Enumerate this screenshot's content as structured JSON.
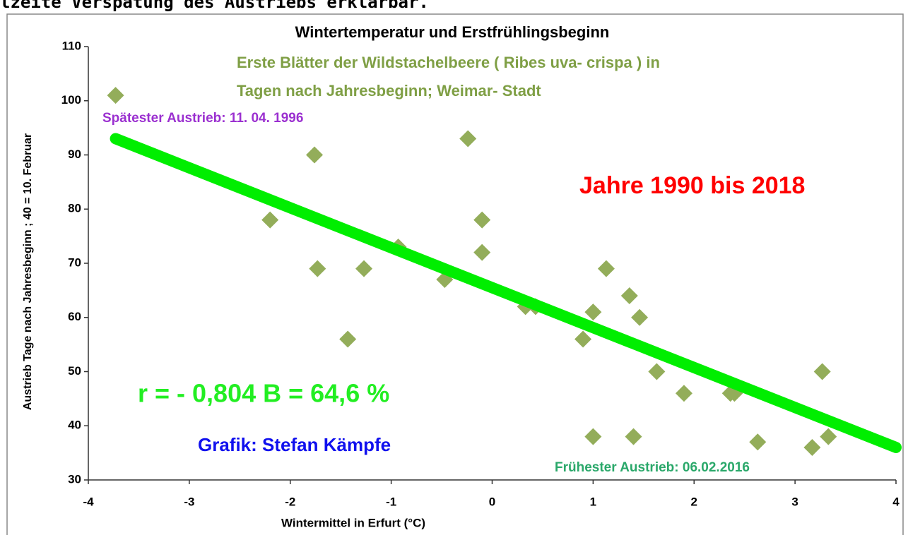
{
  "header_text": "lzeite Verspätung des Austriebs erklärbar.",
  "chart_data": {
    "type": "scatter",
    "title": "Wintertemperatur und Erstfrühlingsbeginn",
    "subtitle": [
      "Erste Blätter der Wildstachelbeere ( Ribes uva- crispa )  in",
      "Tagen nach Jahresbeginn;   Weimar- Stadt"
    ],
    "subtitle_color": "#7f9f45",
    "x_label": "Wintermittel in Erfurt (°C)",
    "y_label": "Austrieb Tage nach Jahresbeginn ; 40 = 10. Februar",
    "xlim": [
      -4,
      4
    ],
    "xticks": [
      -4,
      -3,
      -2,
      -1,
      0,
      1,
      2,
      3,
      4
    ],
    "ylim": [
      30,
      110
    ],
    "yticks": [
      30,
      40,
      50,
      60,
      70,
      80,
      90,
      100,
      110
    ],
    "series": [
      {
        "color": "#93ad5a",
        "x": [
          -3.73,
          -2.2,
          -1.76,
          -1.73,
          -1.27,
          -1.43,
          -0.93,
          -0.47,
          -0.24,
          -0.1,
          -0.1,
          0.33,
          0.43,
          0.9,
          1.0,
          1.0,
          1.13,
          1.36,
          1.4,
          1.46,
          1.63,
          1.9,
          2.36,
          2.4,
          2.63,
          3.17,
          3.27,
          3.33
        ],
        "values": [
          101,
          78,
          90,
          69,
          69,
          56,
          73,
          67,
          93,
          78,
          72,
          62,
          62,
          56,
          61,
          38,
          69,
          64,
          38,
          60,
          50,
          46,
          46,
          46,
          37,
          36,
          50,
          38
        ]
      }
    ],
    "trendline": {
      "color": "#00ee00",
      "x": [
        -3.73,
        4
      ],
      "values": [
        93,
        36
      ]
    },
    "annotations": [
      {
        "text": "Spätester Austrieb: 11. 04. 1996",
        "color": "#9b30d0"
      },
      {
        "text": "Jahre 1990 bis 2018",
        "color": "#ff0000"
      },
      {
        "text": "r = - 0,804  B = 64,6 %",
        "color": "#22ee22"
      },
      {
        "text": "Grafik: Stefan Kämpfe",
        "color": "#1010ee"
      },
      {
        "text": "Frühester Austrieb: 06.02.2016",
        "color": "#2aa86a"
      }
    ]
  }
}
